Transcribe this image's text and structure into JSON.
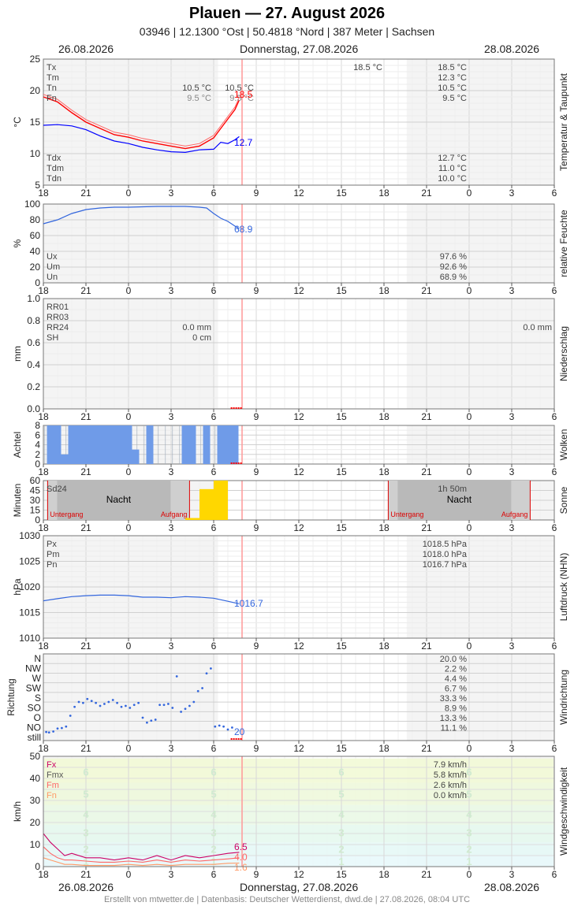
{
  "header": {
    "title": "Plauen  —  27. August 2026",
    "subtitle": "03946  |  12.1300 °Ost  |  50.4818 °Nord  |  387 Meter  |  Sachsen",
    "date_left": "26.08.2026",
    "date_center": "Donnerstag, 27.08.2026",
    "date_right": "28.08.2026"
  },
  "footer": {
    "date_left": "26.08.2026",
    "date_center": "Donnerstag, 27.08.2026",
    "date_right": "28.08.2026",
    "credit": "Erstellt von mtwetter.de | Datenbasis: Deutscher Wetterdienst, dwd.de | 27.08.2026, 08:04 UTC"
  },
  "x_ticks": [
    "18",
    "21",
    "0",
    "3",
    "6",
    "9",
    "12",
    "15",
    "18",
    "21",
    "0",
    "3",
    "6"
  ],
  "colors": {
    "temp": "#ff0000",
    "dew": "#0000ff",
    "humidity": "#3366dd",
    "pressure": "#3366dd",
    "wind_fx": "#cc0066",
    "wind_fm": "#ff6666",
    "wind_fn": "#ff9966",
    "clouds": "#6f9be8",
    "sun": "#ffd700",
    "now": "#ff9999"
  },
  "chart_data": [
    {
      "type": "line",
      "panel": "temperature",
      "ylabel": "°C",
      "side_label": "Temperatur & Taupunkt",
      "ylim": [
        5,
        25
      ],
      "yticks": [
        "25",
        "20",
        "15",
        "10",
        "5"
      ],
      "legend_top": [
        "Tx",
        "Tm",
        "Tn",
        "Fn"
      ],
      "legend_bottom": [
        "Tdx",
        "Tdm",
        "Tdn"
      ],
      "today_values": [
        "18.5 °C",
        "12.3 °C",
        "10.5 °C",
        "9.5 °C"
      ],
      "today_dew_values": [
        "12.7 °C",
        "11.0 °C",
        "10.0 °C"
      ],
      "yesterday_tn": "10.5 °C",
      "yesterday_fn": "9.5 °C",
      "tn_today_label": "10.5 °C",
      "fn_today_label": "9.5 °C",
      "tx_label": "18.5 °C",
      "last_temp_label": "18.5",
      "last_dew_label": "12.7",
      "series": [
        {
          "name": "Tx",
          "x": [
            18,
            19,
            20,
            21,
            22,
            23,
            24,
            25,
            26,
            27,
            28,
            29,
            30,
            31,
            31.5,
            31.8
          ],
          "values": [
            19.0,
            18.2,
            16.5,
            15.0,
            14.0,
            13.0,
            12.6,
            12.0,
            11.6,
            11.2,
            10.8,
            11.2,
            12.5,
            15.5,
            17.0,
            18.5
          ]
        },
        {
          "name": "Td",
          "x": [
            18,
            19,
            20,
            21,
            22,
            23,
            24,
            25,
            26,
            27,
            28,
            29,
            30,
            30.5,
            31,
            31.5,
            31.8
          ],
          "values": [
            14.5,
            14.6,
            14.4,
            13.8,
            12.8,
            12.0,
            11.6,
            11.0,
            10.6,
            10.3,
            10.2,
            10.6,
            10.7,
            11.8,
            11.6,
            12.2,
            12.7
          ]
        }
      ]
    },
    {
      "type": "line",
      "panel": "humidity",
      "ylabel": "%",
      "side_label": "relative Feuchte",
      "ylim": [
        0,
        100
      ],
      "yticks": [
        "100",
        "80",
        "60",
        "40",
        "20",
        "0"
      ],
      "legend": [
        "Ux",
        "Um",
        "Un"
      ],
      "today_values": [
        "97.6 %",
        "92.6 %",
        "68.9 %"
      ],
      "last_label": "68.9",
      "series": [
        {
          "name": "U",
          "x": [
            18,
            19,
            20,
            21,
            22,
            23,
            24,
            25,
            26,
            27,
            28,
            29,
            29.5,
            30,
            30.5,
            31,
            31.5,
            31.8
          ],
          "values": [
            75,
            80,
            88,
            93,
            95,
            96,
            96,
            96.5,
            97,
            97,
            97,
            96,
            95,
            88,
            82,
            78,
            72,
            68.9
          ]
        }
      ]
    },
    {
      "type": "bar",
      "panel": "precipitation",
      "ylabel": "mm",
      "side_label": "Niederschlag",
      "ylim": [
        0,
        1.0
      ],
      "yticks": [
        "1.0",
        "0.8",
        "0.6",
        "0.4",
        "0.2",
        "0.0"
      ],
      "legend": [
        "RR01",
        "RR03",
        "RR24",
        "SH"
      ],
      "yesterday_rr24": "0.0 mm",
      "yesterday_sh": "0 cm",
      "today_rr24": "0.0 mm"
    },
    {
      "type": "bar",
      "panel": "clouds",
      "ylabel": "Achtel",
      "side_label": "Wolken",
      "ylim": [
        0,
        8
      ],
      "yticks": [
        "8",
        "6",
        "4",
        "2",
        "0"
      ],
      "x": [
        18.5,
        19,
        19.5,
        20,
        20.5,
        21,
        21.5,
        22,
        22.5,
        23,
        23.5,
        24,
        24.5,
        25,
        25.5,
        26,
        26.5,
        27,
        27.5,
        28,
        28.5,
        29,
        29.5,
        30,
        30.5,
        31,
        31.5
      ],
      "values": [
        8,
        8,
        2,
        8,
        8,
        8,
        8,
        8,
        8,
        8,
        8,
        8,
        3,
        0,
        8,
        0,
        0,
        0,
        0,
        8,
        8,
        0,
        8,
        0,
        8,
        8,
        8
      ]
    },
    {
      "type": "bar",
      "panel": "sunshine",
      "ylabel": "Minuten",
      "side_label": "Sonne",
      "ylim": [
        0,
        60
      ],
      "yticks": [
        "60",
        "45",
        "30",
        "15",
        "0"
      ],
      "sd24_label": "Sd24",
      "today_sd24": "1h 50m",
      "night_label": "Nacht",
      "sunset_label": "Untergang",
      "sunrise_label": "Aufgang",
      "x": [
        28.5,
        29.5,
        30.5
      ],
      "values": [
        3,
        47,
        60
      ]
    },
    {
      "type": "line",
      "panel": "pressure",
      "ylabel": "hPa",
      "side_label": "Luftdruck (NHN)",
      "ylim": [
        1010,
        1030
      ],
      "yticks": [
        "1030",
        "1025",
        "1020",
        "1015",
        "1010"
      ],
      "legend": [
        "Px",
        "Pm",
        "Pn"
      ],
      "today_values": [
        "1018.5 hPa",
        "1018.0 hPa",
        "1016.7 hPa"
      ],
      "last_label": "1016.7",
      "series": [
        {
          "name": "P",
          "x": [
            18,
            19,
            20,
            21,
            22,
            23,
            24,
            25,
            26,
            27,
            28,
            29,
            30,
            31,
            31.8
          ],
          "values": [
            1017.3,
            1017.7,
            1018.1,
            1018.3,
            1018.4,
            1018.4,
            1018.3,
            1018.0,
            1018.0,
            1017.9,
            1018.1,
            1018.0,
            1017.8,
            1017.2,
            1016.7
          ]
        }
      ]
    },
    {
      "type": "scatter",
      "panel": "wind_direction",
      "ylabel": "Richtung",
      "side_label": "Windrichtung",
      "categories": [
        "N",
        "NW",
        "W",
        "SW",
        "S",
        "SO",
        "O",
        "NO",
        "still"
      ],
      "percentages": [
        "20.0 %",
        "2.2 %",
        "4.4 %",
        "6.7 %",
        "33.3 %",
        "8.9 %",
        "13.3 %",
        "11.1 %"
      ],
      "last_label": "20",
      "x": [
        18.2,
        18.4,
        18.7,
        19,
        19.3,
        19.6,
        19.9,
        20.2,
        20.5,
        20.8,
        21.1,
        21.4,
        21.7,
        22,
        22.3,
        22.6,
        22.9,
        23.2,
        23.5,
        23.8,
        24.1,
        24.4,
        24.7,
        25,
        25.3,
        25.6,
        25.9,
        26.2,
        26.5,
        26.8,
        27.1,
        27.4,
        27.7,
        28,
        28.3,
        28.6,
        28.9,
        29.2,
        29.5,
        29.8,
        30.1,
        30.4,
        30.7,
        31,
        31.3
      ],
      "values": [
        0.55,
        0.5,
        0.6,
        0.9,
        0.95,
        1.1,
        2.2,
        3.1,
        3.6,
        3.5,
        3.9,
        3.7,
        3.5,
        3.2,
        3.4,
        3.6,
        3.8,
        3.5,
        3.1,
        3.2,
        3.0,
        3.3,
        3.5,
        2.0,
        1.5,
        1.7,
        1.8,
        3.3,
        3.3,
        3.4,
        3.0,
        6.2,
        2.6,
        2.9,
        3.2,
        3.6,
        4.7,
        5.0,
        6.5,
        7.0,
        1.1,
        1.2,
        1.1,
        0.8,
        1.0
      ]
    },
    {
      "type": "line",
      "panel": "wind_speed",
      "ylabel": "km/h",
      "side_label": "Windgeschwindigkeit",
      "ylim": [
        0,
        50
      ],
      "yticks": [
        "50",
        "40",
        "30",
        "20",
        "10",
        "0"
      ],
      "legend": [
        "Fx",
        "Fmx",
        "Fm",
        "Fn"
      ],
      "today_values": [
        "7.9 km/h",
        "5.8 km/h",
        "2.6 km/h",
        "0.0 km/h"
      ],
      "beaufort_labels": [
        "6",
        "5",
        "4",
        "3",
        "2",
        "1"
      ],
      "last_fx": "6.5",
      "last_fm": "4.0",
      "last_fn": "1.6",
      "series": [
        {
          "name": "Fx",
          "x": [
            18,
            18.5,
            19,
            19.5,
            20,
            21,
            22,
            23,
            24,
            25,
            26,
            27,
            28,
            29,
            30,
            31,
            31.8
          ],
          "values": [
            15,
            11,
            8,
            5,
            6,
            4,
            4,
            3,
            4,
            3,
            5,
            3,
            5,
            4,
            5,
            6,
            6.5
          ]
        },
        {
          "name": "Fm",
          "x": [
            18,
            18.5,
            19,
            19.5,
            20,
            21,
            22,
            23,
            24,
            25,
            26,
            27,
            28,
            29,
            30,
            31,
            31.8
          ],
          "values": [
            9,
            6,
            4,
            3,
            3,
            2.5,
            2,
            2,
            2.5,
            2,
            3,
            2,
            3,
            2.5,
            3,
            3.5,
            4.0
          ]
        },
        {
          "name": "Fn",
          "x": [
            18,
            18.5,
            19,
            19.5,
            20,
            21,
            22,
            23,
            24,
            25,
            26,
            27,
            28,
            29,
            30,
            31,
            31.8
          ],
          "values": [
            4,
            3,
            2,
            1,
            1,
            0.5,
            0.5,
            0.5,
            1,
            0.5,
            1,
            0.5,
            1,
            1,
            1,
            1.5,
            1.6
          ]
        }
      ]
    }
  ]
}
